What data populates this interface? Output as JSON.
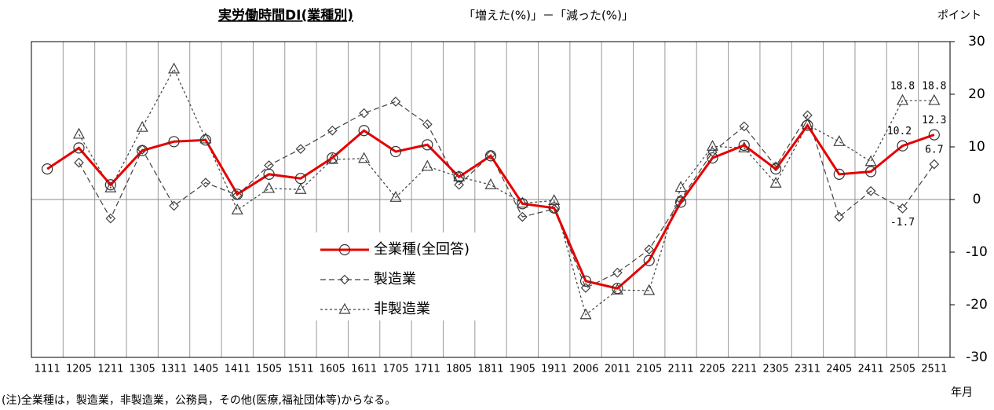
{
  "chart_data": {
    "type": "line",
    "title": "実労働時間DI(業種別)",
    "subtitle": "「増えた(%)」－「減った(%)」",
    "y_axis_label": "ポイント",
    "x_axis_label": "年月",
    "note": "(注)全業種は，製造業，非製造業，公務員，その他(医療,福祉団体等)からなる。",
    "categories": [
      "1111",
      "1205",
      "1211",
      "1305",
      "1311",
      "1405",
      "1411",
      "1505",
      "1511",
      "1605",
      "1611",
      "1705",
      "1711",
      "1805",
      "1811",
      "1905",
      "1911",
      "2006",
      "2011",
      "2105",
      "2111",
      "2205",
      "2211",
      "2305",
      "2311",
      "2405",
      "2411",
      "2505",
      "2511"
    ],
    "series": [
      {
        "name": "全業種(全回答)",
        "color": "#e60000",
        "marker": "circle",
        "dash": "solid",
        "values": [
          5.8,
          9.8,
          2.8,
          9.3,
          11.0,
          11.3,
          1.0,
          4.8,
          4.0,
          7.9,
          13.1,
          9.1,
          10.4,
          4.3,
          8.3,
          -0.8,
          -1.6,
          -15.5,
          -16.9,
          -11.6,
          -0.5,
          7.9,
          10.3,
          5.8,
          14.1,
          4.8,
          5.3,
          10.2,
          12.3
        ],
        "value_labels": [
          null,
          null,
          null,
          null,
          null,
          null,
          null,
          null,
          null,
          null,
          null,
          null,
          null,
          null,
          null,
          null,
          null,
          null,
          null,
          null,
          null,
          null,
          null,
          null,
          null,
          null,
          null,
          "10.2",
          "12.3"
        ]
      },
      {
        "name": "製造業",
        "color": "#404040",
        "marker": "diamond",
        "dash": "dashed",
        "values": [
          null,
          7.0,
          -3.6,
          9.5,
          -1.2,
          3.2,
          0.8,
          6.5,
          9.6,
          13.1,
          16.4,
          18.6,
          14.3,
          2.8,
          8.5,
          -3.3,
          -1.8,
          -16.8,
          -13.9,
          -9.5,
          0.0,
          9.0,
          13.9,
          6.3,
          16.0,
          -3.3,
          1.6,
          -1.7,
          6.7
        ],
        "value_labels": [
          null,
          null,
          null,
          null,
          null,
          null,
          null,
          null,
          null,
          null,
          null,
          null,
          null,
          null,
          null,
          null,
          null,
          null,
          null,
          null,
          null,
          null,
          null,
          null,
          null,
          null,
          null,
          "-1.7",
          "6.7"
        ],
        "label_colors": [
          null,
          null,
          null,
          null,
          null,
          null,
          null,
          null,
          null,
          null,
          null,
          null,
          null,
          null,
          null,
          null,
          null,
          null,
          null,
          null,
          null,
          null,
          null,
          null,
          null,
          null,
          null,
          "#e60000",
          "#000000"
        ]
      },
      {
        "name": "非製造業",
        "color": "#404040",
        "marker": "triangle",
        "dash": "dotted",
        "values": [
          null,
          12.4,
          2.2,
          13.7,
          24.8,
          11.5,
          -2.0,
          2.1,
          1.9,
          7.6,
          7.8,
          0.4,
          6.3,
          4.3,
          2.8,
          -0.7,
          -0.2,
          -21.9,
          -17.2,
          -17.3,
          2.3,
          10.1,
          9.8,
          3.1,
          14.2,
          11.0,
          7.2,
          18.8,
          18.8
        ],
        "value_labels": [
          null,
          null,
          null,
          null,
          null,
          null,
          null,
          null,
          null,
          null,
          null,
          null,
          null,
          null,
          null,
          null,
          null,
          null,
          null,
          null,
          null,
          null,
          null,
          null,
          null,
          null,
          null,
          "18.8",
          "18.8"
        ]
      }
    ],
    "ylim": [
      -30,
      30
    ],
    "yticks": [
      -30,
      -20,
      -10,
      0,
      10,
      20,
      30
    ],
    "grid": true
  }
}
